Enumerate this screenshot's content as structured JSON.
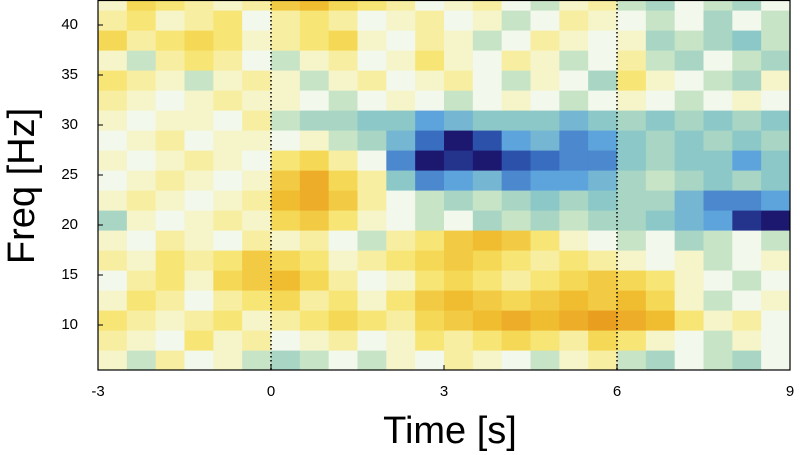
{
  "chart_data": {
    "type": "heatmap",
    "xlabel": "Time [s]",
    "ylabel": "Freq [Hz]",
    "xlim": [
      -3,
      9
    ],
    "ylim": [
      5.5,
      42.5
    ],
    "xticks": [
      -3,
      0,
      3,
      6,
      9
    ],
    "yticks": [
      10,
      15,
      20,
      25,
      30,
      35,
      40
    ],
    "vlines": [
      0,
      6
    ],
    "zlim": [
      -1,
      1
    ],
    "colorscale": [
      [
        -1,
        "#1c1870"
      ],
      [
        -0.75,
        "#2f5fb8"
      ],
      [
        -0.5,
        "#5ea4dc"
      ],
      [
        -0.3,
        "#8cc8c8"
      ],
      [
        -0.12,
        "#bfe0c0"
      ],
      [
        0,
        "#f3f8ec"
      ],
      [
        0.15,
        "#f8f2b8"
      ],
      [
        0.35,
        "#f6e060"
      ],
      [
        0.6,
        "#f0bc30"
      ],
      [
        0.85,
        "#e8961c"
      ],
      [
        1,
        "#d87818"
      ]
    ],
    "x_edges": [
      -3,
      -2.5,
      -2,
      -1.5,
      -1,
      -0.5,
      0,
      0.5,
      1,
      1.5,
      2,
      2.5,
      3,
      3.5,
      4,
      4.5,
      5,
      5.5,
      6,
      6.5,
      7,
      7.5,
      8,
      8.5,
      9
    ],
    "y_edges": [
      5.5,
      7.5,
      9.5,
      11.5,
      13.5,
      15.5,
      17.5,
      19.5,
      21.5,
      23.5,
      25.5,
      27.5,
      29.5,
      31.5,
      33.5,
      35.5,
      37.5,
      39.5,
      41.5,
      42.5
    ],
    "z": [
      [
        0.1,
        -0.1,
        0.2,
        0,
        0.1,
        -0.1,
        -0.2,
        -0.1,
        0,
        -0.1,
        0.1,
        0,
        0.2,
        0.1,
        0,
        -0.1,
        0.1,
        0.2,
        -0.1,
        -0.2,
        0,
        -0.1,
        -0.2,
        0
      ],
      [
        0.2,
        0.1,
        0,
        0.3,
        0.1,
        0.2,
        0,
        0.1,
        0.2,
        0,
        0.1,
        0.3,
        0.2,
        0.3,
        0.4,
        0.3,
        0.2,
        0.4,
        0.3,
        0.1,
        0,
        -0.1,
        0.1,
        0
      ],
      [
        0.3,
        0.2,
        0.1,
        0.2,
        0.3,
        0.1,
        0.2,
        0.3,
        0.4,
        0.3,
        0.2,
        0.4,
        0.5,
        0.6,
        0.7,
        0.6,
        0.7,
        0.8,
        0.7,
        0.6,
        0.3,
        0.1,
        0.2,
        0
      ],
      [
        0.1,
        0.3,
        0.2,
        0,
        0.2,
        0.3,
        0.4,
        0.2,
        0.3,
        0.1,
        0.3,
        0.5,
        0.6,
        0.5,
        0.4,
        0.5,
        0.6,
        0.5,
        0.6,
        0.4,
        0.1,
        -0.1,
        0,
        0.1
      ],
      [
        0,
        0.2,
        0.3,
        0.1,
        0.4,
        0.5,
        0.6,
        0.4,
        0.2,
        0,
        0.1,
        0.3,
        0.4,
        0.3,
        0.2,
        0.3,
        0.4,
        0.5,
        0.4,
        0.3,
        0.1,
        0,
        -0.1,
        0
      ],
      [
        0.2,
        0.1,
        0.3,
        0.2,
        0.3,
        0.5,
        0.4,
        0.3,
        0.1,
        0.2,
        0.3,
        0.4,
        0.5,
        0.4,
        0.3,
        0.2,
        0.3,
        0.2,
        0.1,
        0,
        0.1,
        -0.1,
        0,
        0.1
      ],
      [
        0.1,
        0,
        0.2,
        0.1,
        0,
        0.2,
        0.1,
        0.2,
        0,
        -0.1,
        0.2,
        0.3,
        0.5,
        0.6,
        0.5,
        0.3,
        0.1,
        0,
        -0.1,
        0,
        -0.2,
        -0.1,
        0,
        -0.1
      ],
      [
        -0.2,
        0.1,
        0,
        0.1,
        0.2,
        0.1,
        0.4,
        0.5,
        0.3,
        0.1,
        0,
        -0.1,
        0,
        -0.2,
        -0.1,
        -0.2,
        -0.1,
        -0.2,
        -0.2,
        -0.3,
        -0.4,
        -0.5,
        -0.9,
        -1.0
      ],
      [
        0.1,
        0.2,
        0.1,
        0,
        0.1,
        0.2,
        0.6,
        0.7,
        0.5,
        0.2,
        0,
        -0.1,
        -0.2,
        -0.1,
        -0.2,
        -0.3,
        -0.2,
        -0.3,
        -0.2,
        -0.2,
        -0.4,
        -0.6,
        -0.6,
        -0.5
      ],
      [
        0,
        0.1,
        0.2,
        0.1,
        0,
        0.1,
        0.5,
        0.7,
        0.4,
        0.2,
        -0.3,
        -0.6,
        -0.5,
        -0.4,
        -0.6,
        -0.5,
        -0.5,
        -0.4,
        -0.2,
        -0.1,
        -0.2,
        -0.3,
        -0.2,
        -0.3
      ],
      [
        0.1,
        0,
        0.1,
        0.2,
        0.1,
        0,
        0.3,
        0.4,
        0.2,
        0,
        -0.6,
        -1.0,
        -0.9,
        -1.0,
        -0.8,
        -0.7,
        -0.6,
        -0.6,
        -0.3,
        -0.2,
        -0.3,
        -0.3,
        -0.5,
        -0.3
      ],
      [
        0,
        0.1,
        0.2,
        0,
        0.1,
        0.1,
        0,
        0.1,
        -0.1,
        -0.2,
        -0.4,
        -0.7,
        -1.0,
        -0.8,
        -0.5,
        -0.4,
        -0.6,
        -0.5,
        -0.3,
        -0.2,
        -0.3,
        -0.2,
        -0.3,
        -0.2
      ],
      [
        0.1,
        0,
        0.1,
        0.1,
        0,
        0.2,
        -0.1,
        -0.2,
        -0.2,
        -0.3,
        -0.3,
        -0.5,
        -0.4,
        -0.3,
        -0.3,
        -0.3,
        -0.4,
        -0.3,
        -0.2,
        -0.3,
        -0.2,
        -0.3,
        -0.2,
        -0.3
      ],
      [
        0.2,
        0.1,
        0,
        0.1,
        0.2,
        0.1,
        0.1,
        0,
        -0.1,
        0,
        0.1,
        0,
        -0.1,
        0,
        0.1,
        0,
        -0.1,
        0,
        0.1,
        0,
        -0.1,
        0,
        0.1,
        0
      ],
      [
        0.3,
        0.2,
        0.1,
        -0.1,
        0.1,
        0.2,
        0.1,
        -0.1,
        0.1,
        0.2,
        0,
        0.1,
        0.2,
        0,
        -0.1,
        0.1,
        0,
        -0.2,
        0.3,
        0.1,
        0,
        -0.1,
        -0.2,
        0.1
      ],
      [
        0.1,
        -0.1,
        0.2,
        0.3,
        0.2,
        0,
        -0.1,
        0.1,
        0.2,
        0,
        0.1,
        0.3,
        0.1,
        0,
        0.2,
        0.1,
        -0.1,
        0,
        0.2,
        -0.1,
        -0.2,
        0,
        -0.1,
        -0.2
      ],
      [
        0.4,
        0.2,
        0.3,
        0.4,
        0.3,
        0.1,
        0.2,
        0.3,
        0.4,
        0.1,
        0,
        0.2,
        0.1,
        -0.1,
        0,
        0.2,
        0.1,
        0,
        0.1,
        -0.2,
        -0.1,
        -0.2,
        -0.3,
        -0.1
      ],
      [
        0.2,
        0.3,
        0.1,
        0.2,
        0.3,
        0,
        0.2,
        0.3,
        0.2,
        0,
        0.1,
        0.2,
        0,
        0.1,
        -0.1,
        0,
        0.2,
        0.1,
        0,
        -0.1,
        0,
        -0.2,
        0,
        -0.1
      ],
      [
        0.1,
        0.4,
        0.3,
        0.2,
        0.1,
        0.2,
        0.5,
        0.6,
        0.4,
        0.3,
        0.2,
        0,
        0.1,
        0.2,
        0,
        -0.1,
        0.1,
        0.2,
        -0.1,
        -0.2,
        0,
        -0.1,
        -0.2,
        0
      ]
    ]
  }
}
